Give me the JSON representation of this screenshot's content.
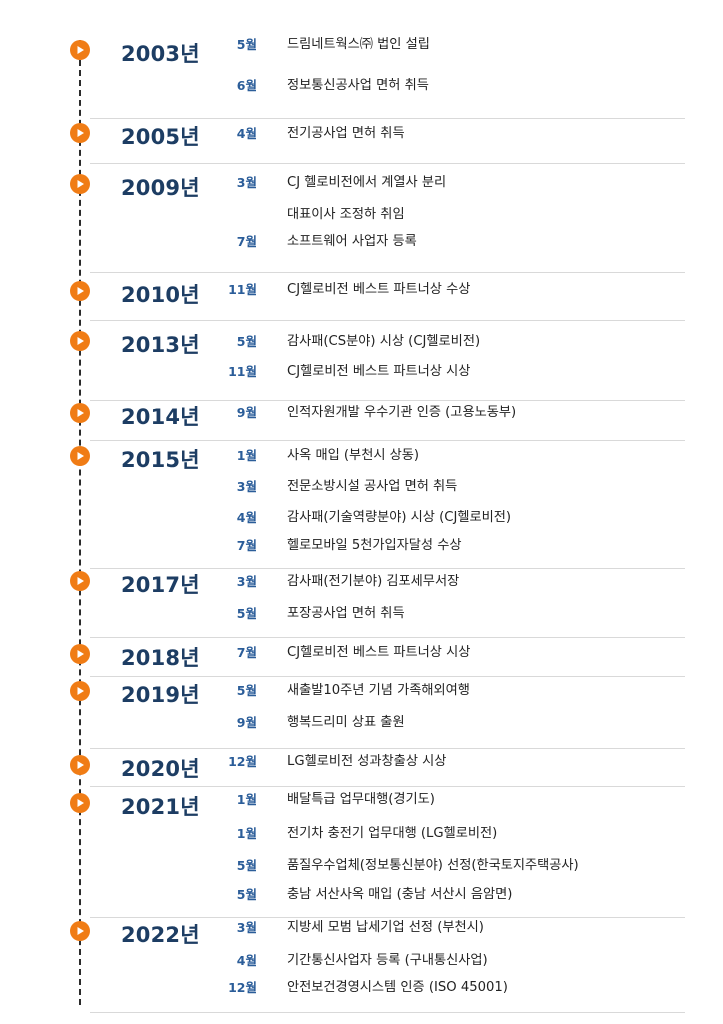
{
  "colors": {
    "accent": "#f07c15",
    "year": "#1d3d63",
    "month": "#2b5d99",
    "text": "#222222",
    "divider": "#d9d9d9"
  },
  "marker_icon": "orange-play-circle-icon",
  "years": [
    {
      "year": "2003년",
      "entries": [
        {
          "month": "5월",
          "text": "드림네트웍스㈜ 법인 설립"
        },
        {
          "month": "6월",
          "text": "정보통신공사업 면허 취득"
        }
      ]
    },
    {
      "year": "2005년",
      "entries": [
        {
          "month": "4월",
          "text": "전기공사업 면허 취득"
        }
      ]
    },
    {
      "year": "2009년",
      "entries": [
        {
          "month": "3월",
          "text": "CJ 헬로비전에서 계열사 분리"
        },
        {
          "month": "",
          "text": "대표이사 조정하 취임"
        },
        {
          "month": "7월",
          "text": "소프트웨어 사업자 등록"
        }
      ]
    },
    {
      "year": "2010년",
      "entries": [
        {
          "month": "11월",
          "text": "CJ헬로비전 베스트 파트너상 수상"
        }
      ]
    },
    {
      "year": "2013년",
      "entries": [
        {
          "month": "5월",
          "text": "감사패(CS분야) 시상 (CJ헬로비전)"
        },
        {
          "month": "11월",
          "text": "CJ헬로비전 베스트 파트너상 시상"
        }
      ]
    },
    {
      "year": "2014년",
      "entries": [
        {
          "month": "9월",
          "text": "인적자원개발 우수기관 인증 (고용노동부)"
        }
      ]
    },
    {
      "year": "2015년",
      "entries": [
        {
          "month": "1월",
          "text": "사옥 매입 (부천시 상동)"
        },
        {
          "month": "3월",
          "text": "전문소방시설 공사업 면허 취득"
        },
        {
          "month": "4월",
          "text": "감사패(기술역량분야) 시상 (CJ헬로비전)"
        },
        {
          "month": "7월",
          "text": "헬로모바일 5천가입자달성 수상"
        }
      ]
    },
    {
      "year": "2017년",
      "entries": [
        {
          "month": "3월",
          "text": "감사패(전기분야) 김포세무서장"
        },
        {
          "month": "5월",
          "text": "포장공사업 면허 취득"
        }
      ]
    },
    {
      "year": "2018년",
      "entries": [
        {
          "month": "7월",
          "text": "CJ헬로비전 베스트 파트너상 시상"
        }
      ]
    },
    {
      "year": "2019년",
      "entries": [
        {
          "month": "5월",
          "text": "새출발10주년 기념 가족해외여행"
        },
        {
          "month": "9월",
          "text": "행복드리미 상표 출원"
        }
      ]
    },
    {
      "year": "2020년",
      "entries": [
        {
          "month": "12월",
          "text": "LG헬로비전 성과창출상 시상"
        }
      ]
    },
    {
      "year": "2021년",
      "entries": [
        {
          "month": "1월",
          "text": "배달특급 업무대행(경기도)"
        },
        {
          "month": "1월",
          "text": "전기차 충전기 업무대행 (LG헬로비전)"
        },
        {
          "month": "5월",
          "text": "품질우수업체(정보통신분야) 선정(한국토지주택공사)"
        },
        {
          "month": "5월",
          "text": "충남 서산사옥 매입 (충남 서산시 음암면)"
        }
      ]
    },
    {
      "year": "2022년",
      "entries": [
        {
          "month": "3월",
          "text": "지방세 모범 납세기업 선정 (부천시)"
        },
        {
          "month": "4월",
          "text": "기간통신사업자 등록 (구내통신사업)"
        },
        {
          "month": "12월",
          "text": "안전보건경영시스템 인증 (ISO 45001)"
        }
      ]
    }
  ]
}
